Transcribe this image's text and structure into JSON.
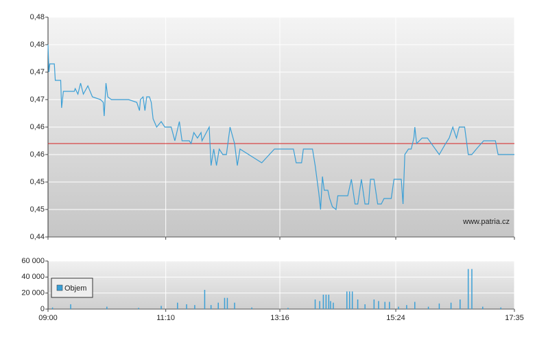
{
  "chart_data": [
    {
      "type": "line",
      "watermark": "www.patria.cz",
      "x": [
        "09:00",
        "09:01",
        "09:02",
        "09:07",
        "09:08",
        "09:14",
        "09:15",
        "09:17",
        "09:29",
        "09:30",
        "09:33",
        "09:36",
        "09:39",
        "09:44",
        "09:49",
        "09:58",
        "10:01",
        "10:02",
        "10:04",
        "10:06",
        "10:10",
        "10:29",
        "10:38",
        "10:41",
        "10:42",
        "10:45",
        "10:47",
        "10:49",
        "10:52",
        "10:54",
        "10:56",
        "11:00",
        "11:05",
        "11:09",
        "11:16",
        "11:20",
        "11:25",
        "11:28",
        "11:36",
        "11:38",
        "11:41",
        "11:45",
        "11:49",
        "11:50",
        "11:58",
        "12:00",
        "12:03",
        "12:06",
        "12:09",
        "12:13",
        "12:17",
        "12:21",
        "12:26",
        "12:29",
        "12:32",
        "12:56",
        "13:10",
        "13:31",
        "13:34",
        "13:40",
        "13:42",
        "13:52",
        "13:55",
        "13:59",
        "14:01",
        "14:03",
        "14:05",
        "14:09",
        "14:11",
        "14:14",
        "14:18",
        "14:20",
        "14:31",
        "14:35",
        "14:39",
        "14:42",
        "14:46",
        "14:50",
        "14:54",
        "14:56",
        "15:00",
        "15:04",
        "15:08",
        "15:11",
        "15:19",
        "15:22",
        "15:30",
        "15:32",
        "15:34",
        "15:38",
        "15:41",
        "15:44",
        "15:45",
        "15:47",
        "15:53",
        "15:59",
        "16:12",
        "16:19",
        "16:23",
        "16:27",
        "16:31",
        "16:34",
        "16:40",
        "16:44",
        "16:48",
        "16:53",
        "17:01",
        "17:14",
        "17:17",
        "17:35"
      ],
      "values": [
        0.475,
        0.47,
        0.4715,
        0.4715,
        0.4685,
        0.4685,
        0.4635,
        0.4665,
        0.4665,
        0.467,
        0.466,
        0.468,
        0.466,
        0.4675,
        0.4655,
        0.465,
        0.4645,
        0.462,
        0.468,
        0.4655,
        0.465,
        0.465,
        0.4645,
        0.463,
        0.465,
        0.4655,
        0.463,
        0.4655,
        0.4655,
        0.4645,
        0.4615,
        0.46,
        0.461,
        0.46,
        0.46,
        0.4575,
        0.461,
        0.4575,
        0.4575,
        0.457,
        0.459,
        0.458,
        0.459,
        0.4575,
        0.46,
        0.453,
        0.456,
        0.453,
        0.456,
        0.455,
        0.455,
        0.46,
        0.457,
        0.453,
        0.456,
        0.4535,
        0.456,
        0.456,
        0.4535,
        0.4535,
        0.456,
        0.456,
        0.453,
        0.448,
        0.445,
        0.451,
        0.4485,
        0.4485,
        0.447,
        0.4455,
        0.445,
        0.4475,
        0.4475,
        0.4505,
        0.446,
        0.446,
        0.4505,
        0.446,
        0.446,
        0.4505,
        0.4505,
        0.446,
        0.446,
        0.447,
        0.447,
        0.4505,
        0.4505,
        0.446,
        0.455,
        0.456,
        0.456,
        0.458,
        0.46,
        0.457,
        0.458,
        0.458,
        0.455,
        0.457,
        0.458,
        0.46,
        0.458,
        0.46,
        0.46,
        0.455,
        0.455,
        0.456,
        0.4575,
        0.4575,
        0.455,
        0.455
      ],
      "color": "#3a9fd6",
      "ref_line": {
        "value": 0.457,
        "color": "#d62020"
      },
      "ylim": [
        0.44,
        0.48
      ],
      "yticks": [
        {
          "value": 0.44,
          "label": "0,44"
        },
        {
          "value": 0.445,
          "label": "0,45"
        },
        {
          "value": 0.45,
          "label": "0,45"
        },
        {
          "value": 0.455,
          "label": "0,46"
        },
        {
          "value": 0.46,
          "label": "0,46"
        },
        {
          "value": 0.465,
          "label": "0,47"
        },
        {
          "value": 0.47,
          "label": "0,47"
        },
        {
          "value": 0.475,
          "label": "0,48"
        },
        {
          "value": 0.48,
          "label": "0,48"
        }
      ],
      "xticks": [
        "09:00",
        "11:10",
        "13:16",
        "15:24",
        "17:35"
      ]
    },
    {
      "type": "bar",
      "x": [
        "09:05",
        "09:25",
        "10:05",
        "10:40",
        "11:05",
        "11:23",
        "11:33",
        "11:42",
        "11:53",
        "12:00",
        "12:08",
        "12:15",
        "12:18",
        "12:26",
        "12:45",
        "13:25",
        "13:55",
        "14:00",
        "14:04",
        "14:07",
        "14:10",
        "14:12",
        "14:15",
        "14:30",
        "14:33",
        "14:36",
        "14:42",
        "14:50",
        "15:00",
        "15:05",
        "15:12",
        "15:17",
        "15:27",
        "15:36",
        "15:45",
        "16:00",
        "16:12",
        "16:25",
        "16:35",
        "16:44",
        "16:48",
        "17:00",
        "17:20"
      ],
      "series": [
        {
          "name": "Objem",
          "color": "#3a9fd6",
          "values": [
            2000,
            6000,
            3000,
            1500,
            4000,
            8000,
            6000,
            5000,
            24000,
            5000,
            8000,
            14000,
            14000,
            8000,
            2000,
            1500,
            12000,
            10000,
            18000,
            18000,
            18000,
            10000,
            8000,
            22000,
            22000,
            22000,
            12000,
            6000,
            12000,
            10000,
            9000,
            9000,
            3000,
            5000,
            9000,
            3000,
            7000,
            8000,
            12000,
            50000,
            50000,
            3000,
            2000
          ]
        }
      ],
      "ylim": [
        0,
        60000
      ],
      "yticks": [
        0,
        {
          "value": 20000,
          "label": "20 000"
        },
        {
          "value": 40000,
          "label": "40 000"
        },
        {
          "value": 60000,
          "label": "60 000"
        }
      ],
      "xticks": [
        "09:00",
        "11:10",
        "13:16",
        "15:24",
        "17:35"
      ]
    }
  ]
}
